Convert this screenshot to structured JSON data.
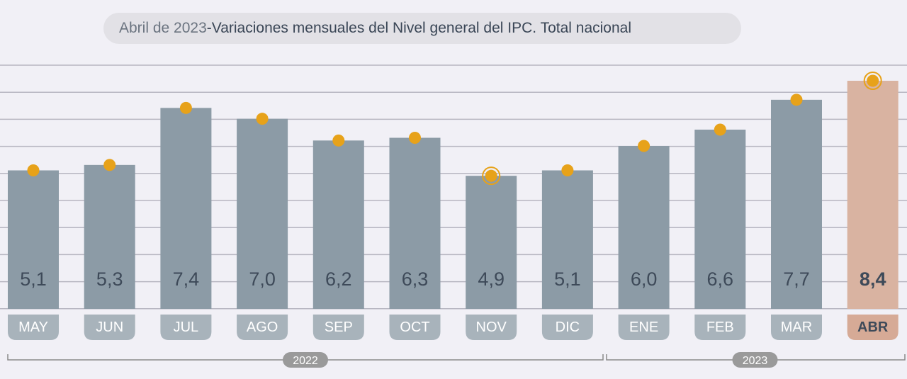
{
  "header": {
    "period": "Abril de 2023",
    "separator": " - ",
    "title": "Variaciones mensuales del Nivel general del IPC. Total nacional"
  },
  "colors": {
    "bar": "#8c9ba6",
    "highlight_bar": "#d9b3a1",
    "dot": "#e7a21a",
    "month_pill": "#a8b3bb",
    "highlight_pill": "#d6aa96",
    "value_text": "#3e4a59",
    "grid": "#b7b6c1",
    "year_pill": "#9a9a9a"
  },
  "chart_data": {
    "type": "bar",
    "categories": [
      "MAY",
      "JUN",
      "JUL",
      "AGO",
      "SEP",
      "OCT",
      "NOV",
      "DIC",
      "ENE",
      "FEB",
      "MAR",
      "ABR"
    ],
    "values": [
      5.1,
      5.3,
      7.4,
      7.0,
      6.2,
      6.3,
      4.9,
      5.1,
      6.0,
      6.6,
      7.7,
      8.4
    ],
    "data_labels": [
      "5,1",
      "5,3",
      "7,4",
      "7,0",
      "6,2",
      "6,3",
      "4,9",
      "5,1",
      "6,0",
      "6,6",
      "7,7",
      "8,4"
    ],
    "highlighted_category": "ABR",
    "ringed_points": [
      "NOV",
      "ABR"
    ],
    "year_groups": [
      {
        "label": "2022",
        "categories": [
          "MAY",
          "JUN",
          "JUL",
          "AGO",
          "SEP",
          "OCT",
          "NOV",
          "DIC"
        ]
      },
      {
        "label": "2023",
        "categories": [
          "ENE",
          "FEB",
          "MAR",
          "ABR"
        ]
      }
    ],
    "ylim": [
      0,
      9
    ],
    "grid": true,
    "title": "Abril de 2023 - Variaciones mensuales del Nivel general del IPC. Total nacional"
  }
}
